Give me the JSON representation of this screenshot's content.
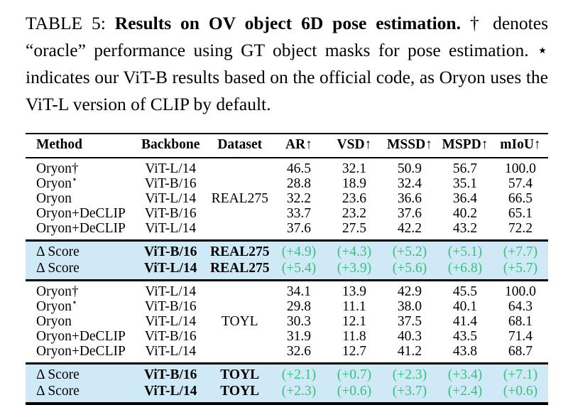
{
  "caption": {
    "prefix": "TABLE 5: ",
    "bold": "Results on OV object 6D pose estimation.",
    "rest": " † denotes “oracle” performance using GT object masks for pose estimation. ⋆ indicates our ViT-B results based on the official code, as Oryon uses the ViT-L version of CLIP by default."
  },
  "colors": {
    "highlight_bg": "#cfe9f7",
    "delta_green": "#3cbf7c",
    "rule_color": "#000000"
  },
  "table": {
    "columns": [
      "Method",
      "Backbone",
      "Dataset",
      "AR↑",
      "VSD↑",
      "MSSD↑",
      "MSPD↑",
      "mIoU↑"
    ],
    "sections": [
      {
        "type": "data",
        "dataset": "REAL275",
        "rows": [
          [
            "Oryon†",
            "ViT-L/14",
            "",
            "46.5",
            "32.1",
            "50.9",
            "56.7",
            "100.0"
          ],
          [
            "Oryon⋆",
            "ViT-B/16",
            "",
            "28.8",
            "18.9",
            "32.4",
            "35.1",
            "57.4"
          ],
          [
            "Oryon",
            "ViT-L/14",
            "REAL275",
            "32.2",
            "23.6",
            "36.6",
            "36.4",
            "66.5"
          ],
          [
            "Oryon+DeCLIP",
            "ViT-B/16",
            "",
            "33.7",
            "23.2",
            "37.6",
            "40.2",
            "65.1"
          ],
          [
            "Oryon+DeCLIP",
            "ViT-L/14",
            "",
            "37.6",
            "27.5",
            "42.2",
            "43.2",
            "72.2"
          ]
        ]
      },
      {
        "type": "delta",
        "dataset": "REAL275",
        "rows": [
          [
            "Δ Score",
            "ViT-B/16",
            "REAL275",
            "(+4.9)",
            "(+4.3)",
            "(+5.2)",
            "(+5.1)",
            "(+7.7)"
          ],
          [
            "Δ Score",
            "ViT-L/14",
            "REAL275",
            "(+5.4)",
            "(+3.9)",
            "(+5.6)",
            "(+6.8)",
            "(+5.7)"
          ]
        ]
      },
      {
        "type": "data",
        "dataset": "TOYL",
        "rows": [
          [
            "Oryon†",
            "ViT-L/14",
            "",
            "34.1",
            "13.9",
            "42.9",
            "45.5",
            "100.0"
          ],
          [
            "Oryon⋆",
            "ViT-B/16",
            "",
            "29.8",
            "11.1",
            "38.0",
            "40.1",
            "64.3"
          ],
          [
            "Oryon",
            "ViT-L/14",
            "TOYL",
            "30.3",
            "12.1",
            "37.5",
            "41.4",
            "68.1"
          ],
          [
            "Oryon+DeCLIP",
            "ViT-B/16",
            "",
            "31.9",
            "11.8",
            "40.3",
            "43.5",
            "71.4"
          ],
          [
            "Oryon+DeCLIP",
            "ViT-L/14",
            "",
            "32.6",
            "12.7",
            "41.2",
            "43.8",
            "68.7"
          ]
        ]
      },
      {
        "type": "delta",
        "dataset": "TOYL",
        "rows": [
          [
            "Δ Score",
            "ViT-B/16",
            "TOYL",
            "(+2.1)",
            "(+0.7)",
            "(+2.3)",
            "(+3.4)",
            "(+7.1)"
          ],
          [
            "Δ Score",
            "ViT-L/14",
            "TOYL",
            "(+2.3)",
            "(+0.6)",
            "(+3.7)",
            "(+2.4)",
            "(+0.6)"
          ]
        ]
      }
    ]
  }
}
